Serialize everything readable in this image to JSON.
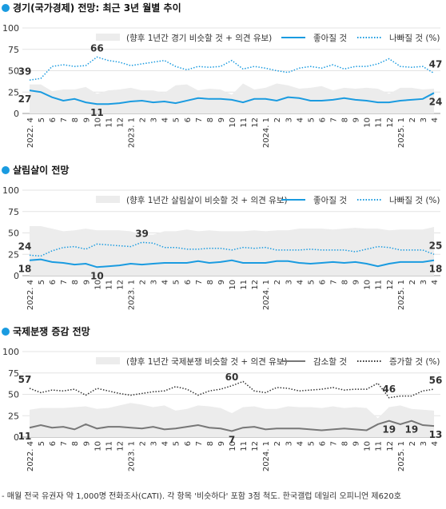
{
  "chart_data": [
    {
      "type": "line",
      "title": "경기(국가경제) 전망: 최근 3년 월별 추이",
      "categories": [
        "2022. 4",
        "5",
        "6",
        "7",
        "8",
        "9",
        "10",
        "11",
        "12",
        "2023. 1",
        "2",
        "3",
        "4",
        "5",
        "6",
        "7",
        "8",
        "9",
        "10",
        "11",
        "12",
        "2024. 1",
        "2",
        "3",
        "4",
        "5",
        "6",
        "7",
        "8",
        "9",
        "10",
        "11",
        "12",
        "2025. 1",
        "2",
        "3",
        "4"
      ],
      "ylim": [
        0,
        100
      ],
      "yticks": [
        0,
        25,
        50,
        75,
        100
      ],
      "series": [
        {
          "name": "(향후 1년간 경기 비슷할 것 + 의견 유보)",
          "kind": "area",
          "color": "#ececec",
          "values": [
            34,
            34,
            26,
            28,
            28,
            31,
            23,
            27,
            28,
            30,
            27,
            27,
            24,
            33,
            34,
            27,
            29,
            28,
            22,
            35,
            28,
            30,
            35,
            33,
            29,
            30,
            32,
            27,
            30,
            29,
            30,
            29,
            23,
            30,
            30,
            28,
            29
          ]
        },
        {
          "name": "좋아질 것",
          "kind": "solid",
          "color": "#1a9be0",
          "labeled_points": [
            0,
            6,
            36
          ],
          "values": [
            27,
            25,
            19,
            15,
            17,
            13,
            11,
            11,
            12,
            14,
            15,
            13,
            14,
            12,
            15,
            18,
            17,
            17,
            16,
            13,
            17,
            17,
            15,
            19,
            18,
            15,
            15,
            16,
            18,
            16,
            15,
            13,
            13,
            15,
            16,
            17,
            24
          ]
        },
        {
          "name": "나빠질 것 (%)",
          "kind": "dotted",
          "color": "#1a9be0",
          "labeled_points": [
            0,
            6,
            36
          ],
          "values": [
            39,
            41,
            55,
            57,
            55,
            56,
            66,
            62,
            60,
            56,
            58,
            60,
            62,
            55,
            51,
            55,
            54,
            55,
            62,
            52,
            55,
            53,
            50,
            48,
            53,
            55,
            53,
            57,
            52,
            55,
            55,
            58,
            64,
            55,
            54,
            55,
            47
          ]
        }
      ]
    },
    {
      "type": "line",
      "title": "살림살이 전망",
      "categories": [
        "2022. 4",
        "5",
        "6",
        "7",
        "8",
        "9",
        "10",
        "11",
        "12",
        "2023. 1",
        "2",
        "3",
        "4",
        "5",
        "6",
        "7",
        "8",
        "9",
        "10",
        "11",
        "12",
        "2024. 1",
        "2",
        "3",
        "4",
        "5",
        "6",
        "7",
        "8",
        "9",
        "10",
        "11",
        "12",
        "2025. 1",
        "2",
        "3",
        "4"
      ],
      "ylim": [
        0,
        100
      ],
      "yticks": [
        0,
        25,
        50,
        75,
        100
      ],
      "series": [
        {
          "name": "(향후 1년간 살림살이 비슷할 것 + 의견 유보)",
          "kind": "area",
          "color": "#ececec",
          "values": [
            58,
            58,
            55,
            52,
            53,
            55,
            53,
            53,
            53,
            52,
            48,
            48,
            52,
            52,
            54,
            52,
            53,
            52,
            52,
            52,
            53,
            52,
            53,
            53,
            55,
            55,
            55,
            54,
            55,
            56,
            55,
            55,
            53,
            54,
            54,
            54,
            57
          ]
        },
        {
          "name": "좋아질 것",
          "kind": "solid",
          "color": "#1a9be0",
          "labeled_points": [
            0,
            6,
            36
          ],
          "values": [
            18,
            19,
            16,
            15,
            13,
            14,
            10,
            11,
            12,
            14,
            13,
            14,
            15,
            15,
            15,
            17,
            15,
            16,
            18,
            15,
            15,
            15,
            17,
            17,
            15,
            14,
            15,
            16,
            15,
            16,
            14,
            11,
            14,
            16,
            16,
            16,
            18
          ]
        },
        {
          "name": "나빠질 것 (%)",
          "kind": "dotted",
          "color": "#1a9be0",
          "labeled_points": [
            0,
            10,
            36
          ],
          "values": [
            24,
            23,
            29,
            33,
            34,
            31,
            37,
            36,
            35,
            34,
            39,
            38,
            33,
            33,
            31,
            31,
            32,
            32,
            30,
            33,
            32,
            33,
            30,
            30,
            30,
            31,
            30,
            30,
            30,
            28,
            31,
            34,
            33,
            30,
            30,
            30,
            25
          ]
        }
      ]
    },
    {
      "type": "line",
      "title": "국제분쟁 증감 전망",
      "categories": [
        "2022. 4",
        "5",
        "6",
        "7",
        "8",
        "9",
        "10",
        "11",
        "12",
        "2023. 1",
        "2",
        "3",
        "4",
        "5",
        "6",
        "7",
        "8",
        "9",
        "10",
        "11",
        "12",
        "2024. 1",
        "2",
        "3",
        "4",
        "5",
        "6",
        "7",
        "8",
        "9",
        "10",
        "11",
        "12",
        "2025. 1",
        "2",
        "3",
        "4"
      ],
      "ylim": [
        0,
        100
      ],
      "yticks": [
        0,
        25,
        50,
        75,
        100
      ],
      "series": [
        {
          "name": "(향후 1년간 국제분쟁 비슷할 것 + 의견 유보)",
          "kind": "area",
          "color": "#ececec",
          "values": [
            32,
            34,
            34,
            34,
            35,
            36,
            33,
            34,
            37,
            40,
            38,
            35,
            37,
            31,
            33,
            37,
            36,
            34,
            28,
            35,
            36,
            33,
            33,
            36,
            35,
            35,
            34,
            36,
            34,
            35,
            34,
            22,
            35,
            37,
            33,
            32,
            31
          ]
        },
        {
          "name": "감소할 것",
          "kind": "solid",
          "color": "#777777",
          "labeled_points": [
            0,
            18,
            32,
            34,
            36
          ],
          "values": [
            11,
            14,
            11,
            12,
            9,
            15,
            10,
            12,
            12,
            11,
            10,
            12,
            9,
            10,
            12,
            14,
            11,
            10,
            7,
            11,
            12,
            9,
            10,
            10,
            10,
            9,
            8,
            9,
            10,
            9,
            8,
            15,
            19,
            15,
            19,
            14,
            13
          ]
        },
        {
          "name": "증가할 것 (%)",
          "kind": "dotted",
          "color": "#333333",
          "labeled_points": [
            0,
            18,
            32,
            36
          ],
          "values": [
            57,
            52,
            55,
            54,
            56,
            49,
            57,
            54,
            51,
            49,
            51,
            53,
            54,
            59,
            56,
            49,
            54,
            56,
            60,
            65,
            54,
            52,
            58,
            57,
            54,
            55,
            56,
            58,
            55,
            56,
            56,
            63,
            46,
            48,
            48,
            54,
            56
          ]
        }
      ]
    }
  ],
  "footnote": "- 매월 전국 유권자 약 1,000명 전화조사(CATI). 각 항목 '비슷하다' 포함 3점 척도. 한국갤럽 데일리 오피니언 제620호"
}
